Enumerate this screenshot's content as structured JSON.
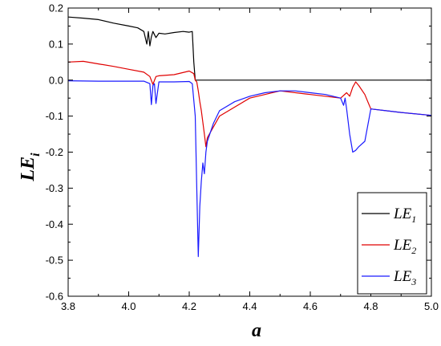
{
  "chart_data": {
    "type": "line",
    "title": "",
    "xlabel": "a",
    "ylabel": "LE",
    "ylabel_sub": "i",
    "xlim": [
      3.8,
      5.0
    ],
    "ylim": [
      -0.6,
      0.2
    ],
    "xticks": [
      "3.8",
      "4.0",
      "4.2",
      "4.4",
      "4.6",
      "4.8",
      "5.0"
    ],
    "yticks": [
      "0.2",
      "0.1",
      "0.0",
      "-0.1",
      "-0.2",
      "-0.3",
      "-0.4",
      "-0.5",
      "-0.6"
    ],
    "grid": false,
    "legend_position": "bottom-right",
    "series": [
      {
        "name": "LE",
        "name_sub": "1",
        "color": "#000000",
        "x": [
          3.8,
          3.85,
          3.9,
          3.95,
          4.0,
          4.03,
          4.05,
          4.06,
          4.065,
          4.07,
          4.075,
          4.08,
          4.09,
          4.1,
          4.12,
          4.15,
          4.18,
          4.2,
          4.21,
          4.215,
          4.22,
          4.23,
          4.26,
          4.3,
          4.4,
          4.5,
          4.6,
          4.7,
          4.75,
          4.8,
          4.9,
          5.0
        ],
        "y": [
          0.175,
          0.172,
          0.168,
          0.158,
          0.15,
          0.145,
          0.135,
          0.1,
          0.135,
          0.095,
          0.12,
          0.135,
          0.118,
          0.13,
          0.128,
          0.132,
          0.135,
          0.133,
          0.135,
          0.05,
          0.0,
          0.0,
          0.0,
          0.0,
          0.0,
          0.0,
          0.0,
          0.0,
          0.0,
          0.0,
          0.0,
          0.0
        ]
      },
      {
        "name": "LE",
        "name_sub": "2",
        "color": "#e00000",
        "x": [
          3.8,
          3.85,
          3.9,
          3.95,
          4.0,
          4.05,
          4.07,
          4.08,
          4.09,
          4.1,
          4.15,
          4.2,
          4.215,
          4.22,
          4.225,
          4.23,
          4.235,
          4.24,
          4.25,
          4.255,
          4.26,
          4.3,
          4.4,
          4.5,
          4.6,
          4.7,
          4.72,
          4.73,
          4.74,
          4.75,
          4.76,
          4.78,
          4.79,
          4.8,
          4.9,
          5.0
        ],
        "y": [
          0.05,
          0.052,
          0.045,
          0.038,
          0.03,
          0.022,
          0.01,
          -0.012,
          0.01,
          0.012,
          0.015,
          0.025,
          0.018,
          0.0,
          -0.005,
          -0.03,
          -0.06,
          -0.085,
          -0.15,
          -0.185,
          -0.16,
          -0.1,
          -0.05,
          -0.03,
          -0.04,
          -0.05,
          -0.035,
          -0.045,
          -0.02,
          -0.005,
          -0.015,
          -0.04,
          -0.06,
          -0.08,
          -0.09,
          -0.098
        ]
      },
      {
        "name": "LE",
        "name_sub": "3",
        "color": "#1a1aff",
        "x": [
          3.8,
          3.9,
          4.0,
          4.05,
          4.07,
          4.075,
          4.08,
          4.085,
          4.09,
          4.1,
          4.15,
          4.2,
          4.21,
          4.22,
          4.225,
          4.23,
          4.235,
          4.24,
          4.245,
          4.25,
          4.255,
          4.26,
          4.28,
          4.3,
          4.35,
          4.4,
          4.45,
          4.5,
          4.55,
          4.6,
          4.65,
          4.7,
          4.71,
          4.715,
          4.72,
          4.73,
          4.74,
          4.75,
          4.76,
          4.78,
          4.8,
          4.85,
          4.9,
          5.0
        ],
        "y": [
          -0.002,
          -0.003,
          -0.003,
          -0.003,
          -0.01,
          -0.068,
          -0.015,
          -0.01,
          -0.065,
          -0.005,
          -0.005,
          -0.004,
          -0.01,
          -0.1,
          -0.3,
          -0.49,
          -0.35,
          -0.28,
          -0.23,
          -0.26,
          -0.2,
          -0.17,
          -0.12,
          -0.085,
          -0.06,
          -0.045,
          -0.035,
          -0.03,
          -0.03,
          -0.035,
          -0.04,
          -0.05,
          -0.07,
          -0.05,
          -0.08,
          -0.15,
          -0.2,
          -0.195,
          -0.185,
          -0.17,
          -0.08,
          -0.085,
          -0.09,
          -0.098
        ]
      }
    ]
  }
}
